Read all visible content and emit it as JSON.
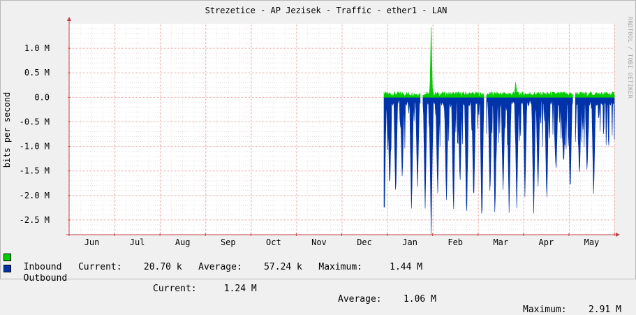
{
  "chart_data": {
    "type": "area",
    "title": "Strezetice - AP Jezisek - Traffic - ether1 - LAN",
    "ylabel": "bits per second",
    "watermark": "RRDTOOL / TOBI OETIKER",
    "ylim": [
      -2800000,
      1500000
    ],
    "y_ticks": [
      {
        "value": 1000000,
        "label": "1.0 M"
      },
      {
        "value": 500000,
        "label": "0.5 M"
      },
      {
        "value": 0,
        "label": "0.0"
      },
      {
        "value": -500000,
        "label": "-0.5 M"
      },
      {
        "value": -1000000,
        "label": "-1.0 M"
      },
      {
        "value": -1500000,
        "label": "-1.5 M"
      },
      {
        "value": -2000000,
        "label": "-2.0 M"
      },
      {
        "value": -2500000,
        "label": "-2.5 M"
      }
    ],
    "x_months": [
      "Jun",
      "Jul",
      "Aug",
      "Sep",
      "Oct",
      "Nov",
      "Dec",
      "Jan",
      "Feb",
      "Mar",
      "Apr",
      "May"
    ],
    "data_start_fraction": 0.5775,
    "gap_ranges": [
      [
        0.6445,
        0.6485
      ],
      [
        0.7615,
        0.7655
      ],
      [
        0.9245,
        0.9285
      ]
    ],
    "series": [
      {
        "name": "Inbound",
        "color": "#00CC00",
        "current": "20.70 k",
        "average": "57.24 k",
        "maximum": "1.44 M",
        "typical": 60000,
        "spikes": [
          {
            "at": 0.664,
            "value": 1440000
          },
          {
            "at": 0.819,
            "value": 320000
          }
        ]
      },
      {
        "name": "Outbound",
        "color": "#0033AA",
        "current": "1.24 M",
        "average": "1.06 M",
        "maximum": "2.91 M",
        "typical": -80000,
        "dips": [
          {
            "at": 0.578,
            "value": -2600000
          },
          {
            "at": 0.588,
            "value": -1950000
          },
          {
            "at": 0.599,
            "value": -2100000
          },
          {
            "at": 0.611,
            "value": -1750000
          },
          {
            "at": 0.628,
            "value": -2400000
          },
          {
            "at": 0.639,
            "value": -1900000
          },
          {
            "at": 0.653,
            "value": -2300000
          },
          {
            "at": 0.664,
            "value": -2800000
          },
          {
            "at": 0.676,
            "value": -2000000
          },
          {
            "at": 0.692,
            "value": -2200000
          },
          {
            "at": 0.705,
            "value": -2450000
          },
          {
            "at": 0.717,
            "value": -1850000
          },
          {
            "at": 0.729,
            "value": -2600000
          },
          {
            "at": 0.742,
            "value": -2250000
          },
          {
            "at": 0.757,
            "value": -2700000
          },
          {
            "at": 0.772,
            "value": -2100000
          },
          {
            "at": 0.781,
            "value": -2550000
          },
          {
            "at": 0.796,
            "value": -2000000
          },
          {
            "at": 0.807,
            "value": -2450000
          },
          {
            "at": 0.821,
            "value": -2300000
          },
          {
            "at": 0.836,
            "value": -2050000
          },
          {
            "at": 0.852,
            "value": -2450000
          },
          {
            "at": 0.86,
            "value": -1900000
          },
          {
            "at": 0.876,
            "value": -2200000
          },
          {
            "at": 0.893,
            "value": -1600000
          },
          {
            "at": 0.907,
            "value": -1450000
          },
          {
            "at": 0.919,
            "value": -2050000
          },
          {
            "at": 0.936,
            "value": -1700000
          },
          {
            "at": 0.95,
            "value": -1600000
          },
          {
            "at": 0.962,
            "value": -2100000
          }
        ]
      }
    ],
    "legend_labels": {
      "current": "Current:",
      "average": "Average:",
      "maximum": "Maximum:"
    }
  }
}
